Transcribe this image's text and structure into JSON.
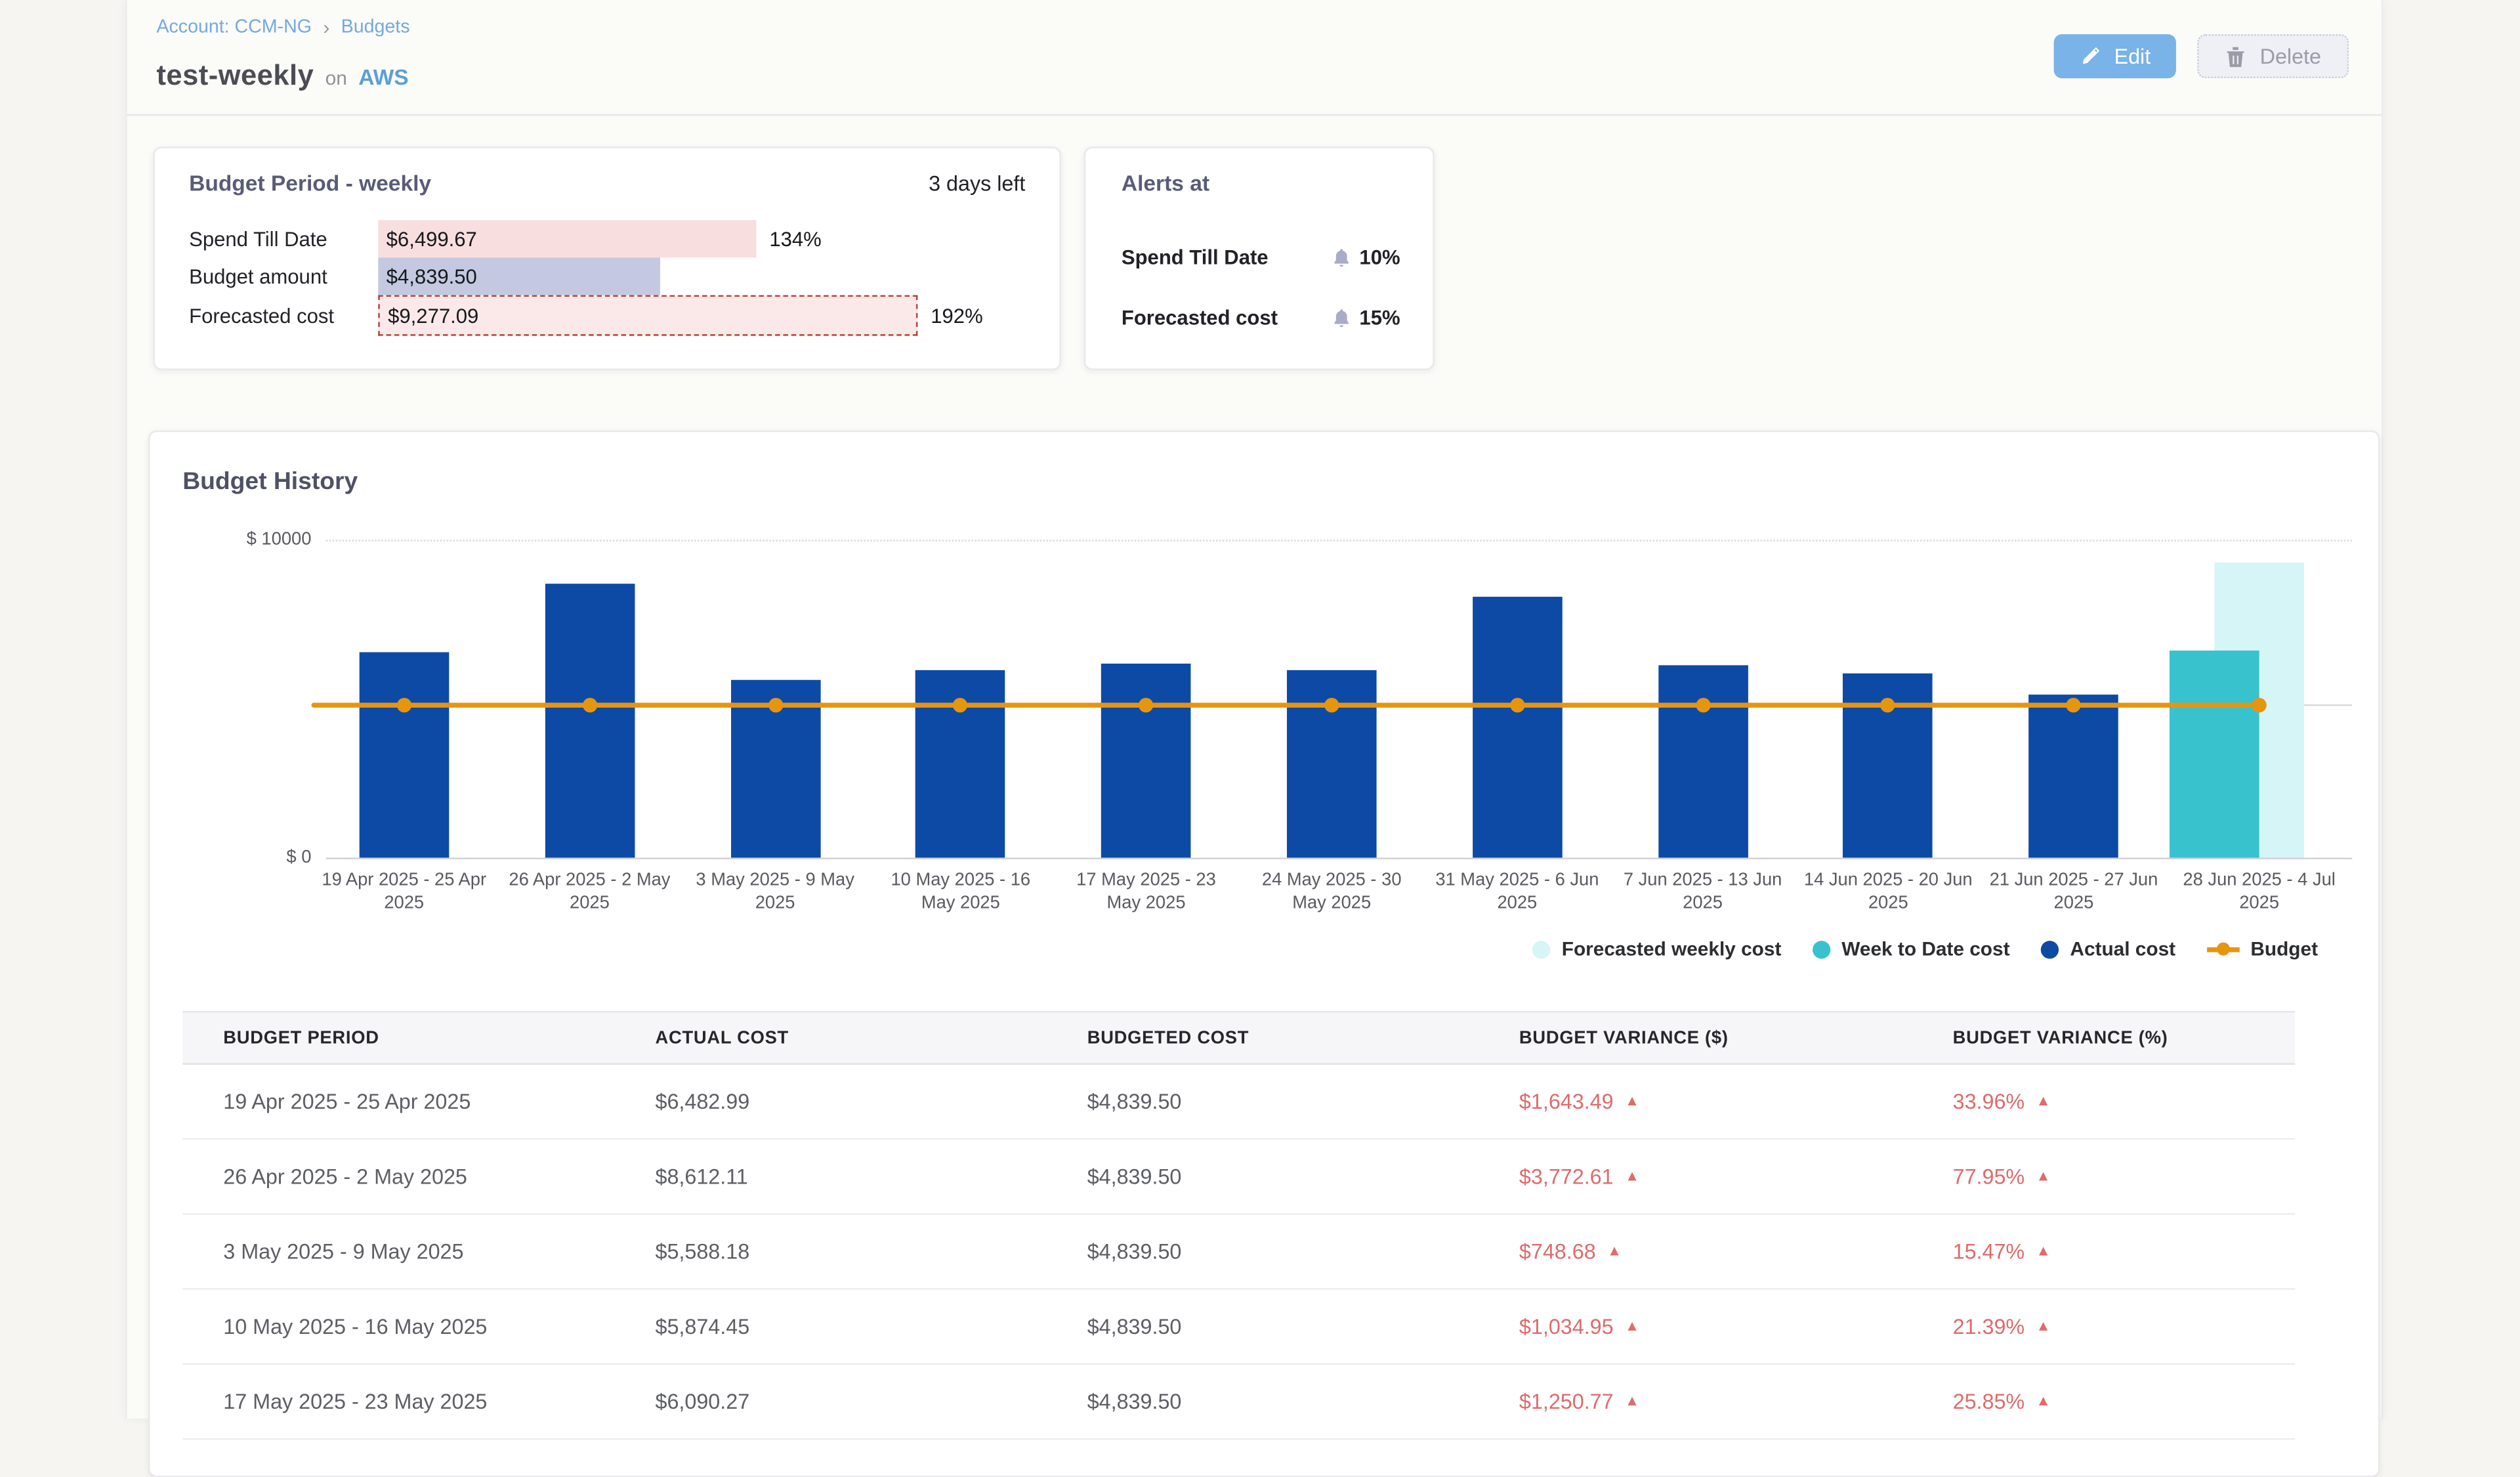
{
  "breadcrumb": {
    "account": "Account: CCM-NG",
    "separator": "›",
    "section": "Budgets"
  },
  "header": {
    "title": "test-weekly",
    "on_label": "on",
    "provider": "AWS",
    "edit_label": "Edit",
    "delete_label": "Delete"
  },
  "budget_period_card": {
    "title": "Budget Period - weekly",
    "days_left": "3 days left",
    "max_value": 9277.09,
    "rows": [
      {
        "label": "Spend Till Date",
        "value": "$6,499.67",
        "value_num": 6499.67,
        "pct": "134%",
        "type": "spend"
      },
      {
        "label": "Budget amount",
        "value": "$4,839.50",
        "value_num": 4839.5,
        "pct": "",
        "type": "budget"
      },
      {
        "label": "Forecasted cost",
        "value": "$9,277.09",
        "value_num": 9277.09,
        "pct": "192%",
        "type": "forecast"
      }
    ]
  },
  "alerts_card": {
    "title": "Alerts at",
    "rows": [
      {
        "label": "Spend Till Date",
        "threshold": "10%"
      },
      {
        "label": "Forecasted cost",
        "threshold": "15%"
      }
    ]
  },
  "chart_section": {
    "title": "Budget History"
  },
  "chart_data": {
    "type": "bar",
    "title": "Budget History",
    "y_axis": {
      "top_label": "$ 10000",
      "bottom_label": "$ 0",
      "max": 10000,
      "min": 0
    },
    "grid": "horizontal-dotted-top",
    "legend_position": "bottom-right",
    "categories": [
      "19 Apr 2025 - 25 Apr 2025",
      "26 Apr 2025 - 2 May 2025",
      "3 May 2025 - 9 May 2025",
      "10 May 2025 - 16 May 2025",
      "17 May 2025 - 23 May 2025",
      "24 May 2025 - 30 May 2025",
      "31 May 2025 - 6 Jun 2025",
      "7 Jun 2025 - 13 Jun 2025",
      "14 Jun 2025 - 20 Jun 2025",
      "21 Jun 2025 - 27 Jun 2025",
      "28 Jun 2025 - 4 Jul 2025"
    ],
    "series": [
      {
        "name": "Actual cost",
        "color": "#0d4aa5",
        "values": [
          6482.99,
          8612.11,
          5588.18,
          5874.45,
          6090.27,
          5880,
          8200,
          6050,
          5775,
          5110,
          null
        ]
      },
      {
        "name": "Week to Date cost",
        "color": "#38c2ce",
        "values": [
          null,
          null,
          null,
          null,
          null,
          null,
          null,
          null,
          null,
          null,
          6499.67
        ]
      },
      {
        "name": "Forecasted weekly cost",
        "color": "#d5f5f7",
        "values": [
          null,
          null,
          null,
          null,
          null,
          null,
          null,
          null,
          null,
          null,
          9277.09
        ]
      },
      {
        "name": "Budget",
        "type": "line",
        "color": "#e6950f",
        "value": 4839.5
      }
    ],
    "legend": [
      {
        "label": "Forecasted weekly cost",
        "color": "#d5f5f7",
        "marker": "dot"
      },
      {
        "label": "Week to Date cost",
        "color": "#38c2ce",
        "marker": "dot"
      },
      {
        "label": "Actual cost",
        "color": "#0d4aa5",
        "marker": "dot"
      },
      {
        "label": "Budget",
        "color": "#e6950f",
        "marker": "line"
      }
    ]
  },
  "table": {
    "columns": [
      "BUDGET PERIOD",
      "ACTUAL COST",
      "BUDGETED COST",
      "BUDGET VARIANCE ($)",
      "BUDGET VARIANCE (%)"
    ],
    "rows": [
      {
        "period": "19 Apr 2025 - 25 Apr 2025",
        "actual": "$6,482.99",
        "budgeted": "$4,839.50",
        "variance_usd": "$1,643.49",
        "variance_pct": "33.96%",
        "direction": "up"
      },
      {
        "period": "26 Apr 2025 - 2 May 2025",
        "actual": "$8,612.11",
        "budgeted": "$4,839.50",
        "variance_usd": "$3,772.61",
        "variance_pct": "77.95%",
        "direction": "up"
      },
      {
        "period": "3 May 2025 - 9 May 2025",
        "actual": "$5,588.18",
        "budgeted": "$4,839.50",
        "variance_usd": "$748.68",
        "variance_pct": "15.47%",
        "direction": "up"
      },
      {
        "period": "10 May 2025 - 16 May 2025",
        "actual": "$5,874.45",
        "budgeted": "$4,839.50",
        "variance_usd": "$1,034.95",
        "variance_pct": "21.39%",
        "direction": "up"
      },
      {
        "period": "17 May 2025 - 23 May 2025",
        "actual": "$6,090.27",
        "budgeted": "$4,839.50",
        "variance_usd": "$1,250.77",
        "variance_pct": "25.85%",
        "direction": "up"
      }
    ]
  },
  "colors": {
    "actual_bar": "#0d4aa5",
    "week_to_date": "#38c2ce",
    "forecast_weekly": "#d5f5f7",
    "budget_line": "#e6950f",
    "variance_red": "#df6b6b",
    "link_blue": "#74aadb",
    "edit_button": "#79b3e7",
    "spend_bar": "#f8dede",
    "budget_amount_bar": "#c4c9e1",
    "forecast_bar_border": "#b5423c"
  }
}
